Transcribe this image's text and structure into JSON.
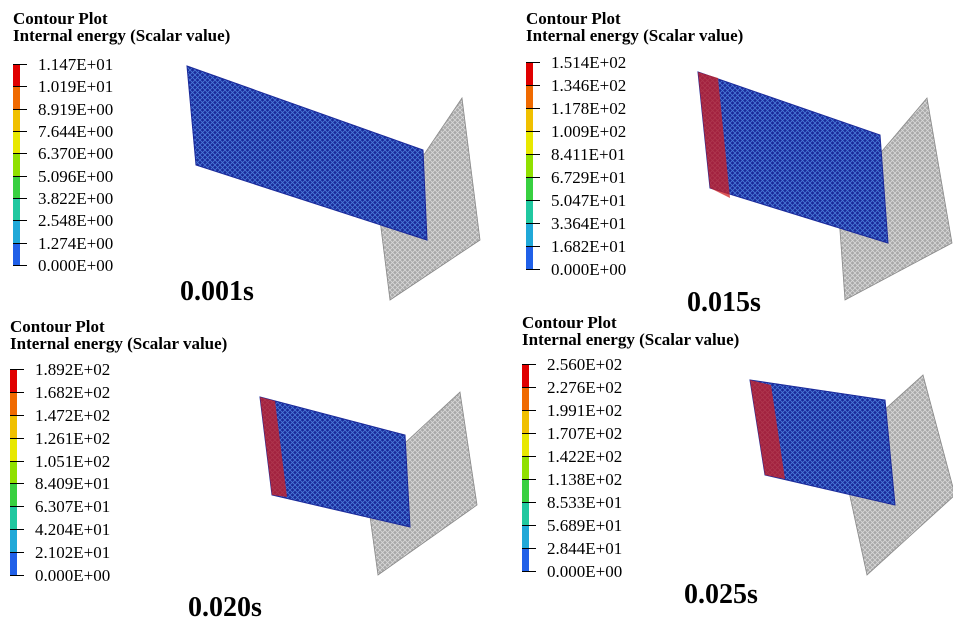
{
  "panels": [
    {
      "title": "Contour Plot",
      "subtitle": "Internal energy (Scalar value)",
      "legend": [
        "1.147E+01",
        "1.019E+01",
        "8.919E+00",
        "7.644E+00",
        "6.370E+00",
        "5.096E+00",
        "3.822E+00",
        "2.548E+00",
        "1.274E+00",
        "0.000E+00"
      ],
      "time": "0.001s"
    },
    {
      "title": "Contour Plot",
      "subtitle": "Internal energy (Scalar value)",
      "legend": [
        "1.514E+02",
        "1.346E+02",
        "1.178E+02",
        "1.009E+02",
        "8.411E+01",
        "6.729E+01",
        "5.047E+01",
        "3.364E+01",
        "1.682E+01",
        "0.000E+00"
      ],
      "time": "0.015s"
    },
    {
      "title": "Contour Plot",
      "subtitle": "Internal energy (Scalar value)",
      "legend": [
        "1.892E+02",
        "1.682E+02",
        "1.472E+02",
        "1.261E+02",
        "1.051E+02",
        "8.409E+01",
        "6.307E+01",
        "4.204E+01",
        "2.102E+01",
        "0.000E+00"
      ],
      "time": "0.020s"
    },
    {
      "title": "Contour Plot",
      "subtitle": "Internal energy (Scalar value)",
      "legend": [
        "2.560E+02",
        "2.276E+02",
        "1.991E+02",
        "1.707E+02",
        "1.422E+02",
        "1.138E+02",
        "8.533E+01",
        "5.689E+01",
        "2.844E+01",
        "0.000E+00"
      ],
      "time": "0.025s"
    }
  ],
  "colors": {
    "scale": [
      "#e00000",
      "#f06a00",
      "#f0c000",
      "#e8e800",
      "#90e000",
      "#38d040",
      "#20c8a0",
      "#20a8d8",
      "#2060e8",
      "#0000a0"
    ],
    "mesh_blue": "#1a2a9a",
    "plate_gray": "#a8a8a8"
  }
}
